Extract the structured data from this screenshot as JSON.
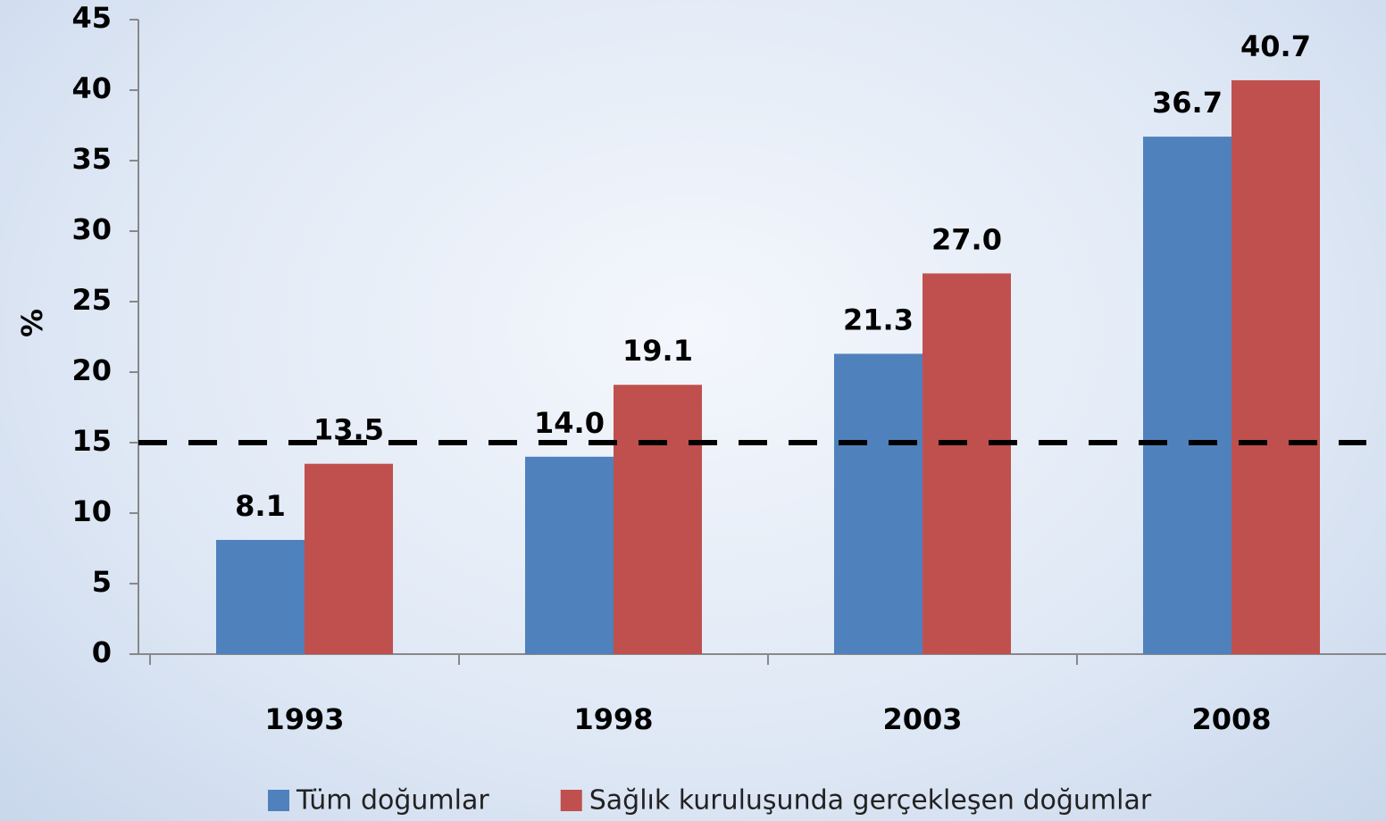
{
  "chart_data": {
    "type": "bar",
    "y_label": "%",
    "categories": [
      "1993",
      "1998",
      "2003",
      "2008"
    ],
    "series": [
      {
        "name": "Tüm doğumlar",
        "color": "#4f81bd",
        "values": [
          8.1,
          14.0,
          21.3,
          36.7
        ],
        "value_labels": [
          "8.1",
          "14.0",
          "21.3",
          "36.7"
        ]
      },
      {
        "name": "Sağlık kuruluşunda gerçekleşen doğumlar",
        "color": "#c0504d",
        "values": [
          13.5,
          19.1,
          27.0,
          40.7
        ],
        "value_labels": [
          "13.5",
          "19.1",
          "27.0",
          "40.7"
        ]
      }
    ],
    "reference_line": 15,
    "ylim": [
      0,
      45
    ],
    "yticks": [
      0,
      5,
      10,
      15,
      20,
      25,
      30,
      35,
      40,
      45
    ],
    "grid": false,
    "legend": "bottom"
  }
}
